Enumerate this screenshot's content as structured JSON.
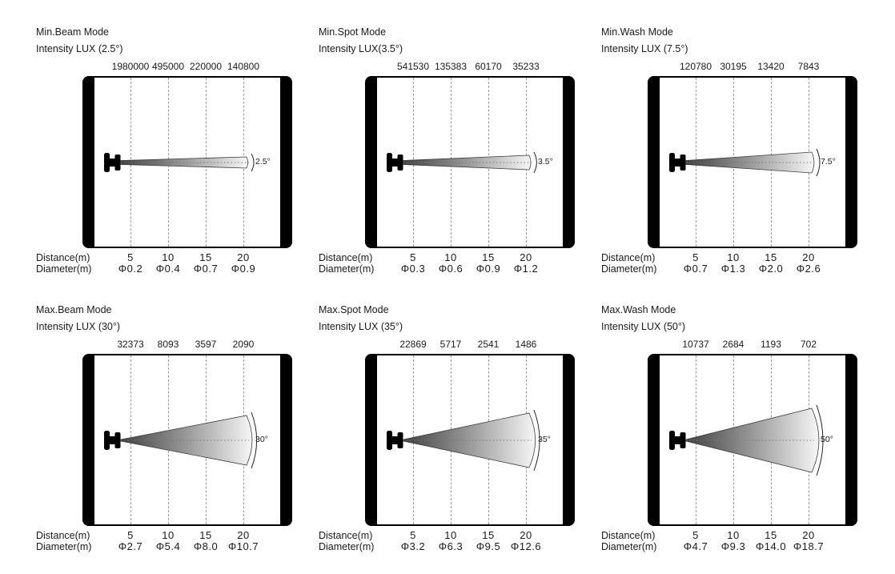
{
  "colors": {
    "ink": "#1a1a1a",
    "gridline": "#9a9a9a",
    "wall": "#000000",
    "beam_dark": "#414141",
    "beam_light": "#f6f6f6"
  },
  "panels": [
    {
      "title": "Min.Beam Mode",
      "subtitle": "Intensity LUX (2.5°)",
      "angle_label": "2.5°",
      "intensity": [
        "1980000",
        "495000",
        "220000",
        "140800"
      ],
      "distance_label": "Distance(m)",
      "diameter_label": "Diameter(m)",
      "distances": [
        "5",
        "10",
        "15",
        "20"
      ],
      "diameters": [
        "Φ0.2",
        "Φ0.4",
        "Φ0.7",
        "Φ0.9"
      ]
    },
    {
      "title": "Min.Spot Mode",
      "subtitle": "Intensity LUX(3.5°)",
      "angle_label": "3.5°",
      "intensity": [
        "541530",
        "135383",
        "60170",
        "35233"
      ],
      "distance_label": "Distance(m)",
      "diameter_label": "Diameter(m)",
      "distances": [
        "5",
        "10",
        "15",
        "20"
      ],
      "diameters": [
        "Φ0.3",
        "Φ0.6",
        "Φ0.9",
        "Φ1.2"
      ]
    },
    {
      "title": "Min.Wash Mode",
      "subtitle": "Intensity LUX (7.5°)",
      "angle_label": "7.5°",
      "intensity": [
        "120780",
        "30195",
        "13420",
        "7843"
      ],
      "distance_label": "Distance(m)",
      "diameter_label": "Diameter(m)",
      "distances": [
        "5",
        "10",
        "15",
        "20"
      ],
      "diameters": [
        "Φ0.7",
        "Φ1.3",
        "Φ2.0",
        "Φ2.6"
      ]
    },
    {
      "title": "Max.Beam Mode",
      "subtitle": "Intensity LUX (30°)",
      "angle_label": "30°",
      "intensity": [
        "32373",
        "8093",
        "3597",
        "2090"
      ],
      "distance_label": "Distance(m)",
      "diameter_label": "Diameter(m)",
      "distances": [
        "5",
        "10",
        "15",
        "20"
      ],
      "diameters": [
        "Φ2.7",
        "Φ5.4",
        "Φ8.0",
        "Φ10.7"
      ]
    },
    {
      "title": "Max.Spot Mode",
      "subtitle": "Intensity LUX (35°)",
      "angle_label": "35°",
      "intensity": [
        "22869",
        "5717",
        "2541",
        "1486"
      ],
      "distance_label": "Distance(m)",
      "diameter_label": "Diameter(m)",
      "distances": [
        "5",
        "10",
        "15",
        "20"
      ],
      "diameters": [
        "Φ3.2",
        "Φ6.3",
        "Φ9.5",
        "Φ12.6"
      ]
    },
    {
      "title": "Max.Wash Mode",
      "subtitle": "Intensity LUX (50°)",
      "angle_label": "50°",
      "intensity": [
        "10737",
        "2684",
        "1193",
        "702"
      ],
      "distance_label": "Distance(m)",
      "diameter_label": "Diameter(m)",
      "distances": [
        "5",
        "10",
        "15",
        "20"
      ],
      "diameters": [
        "Φ4.7",
        "Φ9.3",
        "Φ14.0",
        "Φ18.7"
      ]
    }
  ],
  "chart_data": [
    {
      "type": "table",
      "title": "Min.Beam Mode",
      "beam_angle_deg": 2.5,
      "columns": [
        "Distance(m)",
        "Intensity LUX",
        "Diameter(m)"
      ],
      "rows": [
        [
          5,
          1980000,
          0.2
        ],
        [
          10,
          495000,
          0.4
        ],
        [
          15,
          220000,
          0.7
        ],
        [
          20,
          140800,
          0.9
        ]
      ]
    },
    {
      "type": "table",
      "title": "Min.Spot Mode",
      "beam_angle_deg": 3.5,
      "columns": [
        "Distance(m)",
        "Intensity LUX",
        "Diameter(m)"
      ],
      "rows": [
        [
          5,
          541530,
          0.3
        ],
        [
          10,
          135383,
          0.6
        ],
        [
          15,
          60170,
          0.9
        ],
        [
          20,
          35233,
          1.2
        ]
      ]
    },
    {
      "type": "table",
      "title": "Min.Wash Mode",
      "beam_angle_deg": 7.5,
      "columns": [
        "Distance(m)",
        "Intensity LUX",
        "Diameter(m)"
      ],
      "rows": [
        [
          5,
          120780,
          0.7
        ],
        [
          10,
          30195,
          1.3
        ],
        [
          15,
          13420,
          2.0
        ],
        [
          20,
          7843,
          2.6
        ]
      ]
    },
    {
      "type": "table",
      "title": "Max.Beam Mode",
      "beam_angle_deg": 30,
      "columns": [
        "Distance(m)",
        "Intensity LUX",
        "Diameter(m)"
      ],
      "rows": [
        [
          5,
          32373,
          2.7
        ],
        [
          10,
          8093,
          5.4
        ],
        [
          15,
          3597,
          8.0
        ],
        [
          20,
          2090,
          10.7
        ]
      ]
    },
    {
      "type": "table",
      "title": "Max.Spot Mode",
      "beam_angle_deg": 35,
      "columns": [
        "Distance(m)",
        "Intensity LUX",
        "Diameter(m)"
      ],
      "rows": [
        [
          5,
          22869,
          3.2
        ],
        [
          10,
          5717,
          6.3
        ],
        [
          15,
          2541,
          9.5
        ],
        [
          20,
          1486,
          12.6
        ]
      ]
    },
    {
      "type": "table",
      "title": "Max.Wash Mode",
      "beam_angle_deg": 50,
      "columns": [
        "Distance(m)",
        "Intensity LUX",
        "Diameter(m)"
      ],
      "rows": [
        [
          5,
          10737,
          4.7
        ],
        [
          10,
          2684,
          9.3
        ],
        [
          15,
          1193,
          14.0
        ],
        [
          20,
          702,
          18.7
        ]
      ]
    }
  ]
}
